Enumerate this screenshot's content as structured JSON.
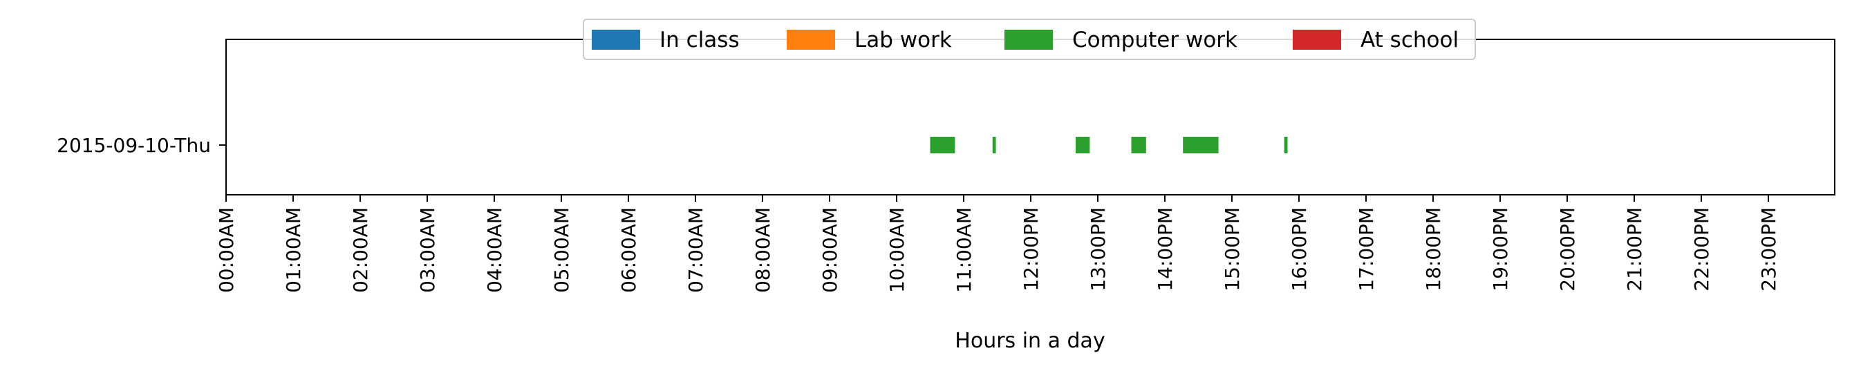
{
  "chart_data": {
    "type": "bar",
    "orientation": "horizontal-timeline",
    "xlabel": "Hours in a day",
    "xlim_hours": [
      0,
      24
    ],
    "xticks": [
      "00:00AM",
      "01:00AM",
      "02:00AM",
      "03:00AM",
      "04:00AM",
      "05:00AM",
      "06:00AM",
      "07:00AM",
      "08:00AM",
      "09:00AM",
      "10:00AM",
      "11:00AM",
      "12:00PM",
      "13:00PM",
      "14:00PM",
      "15:00PM",
      "16:00PM",
      "17:00PM",
      "18:00PM",
      "19:00PM",
      "20:00PM",
      "21:00PM",
      "22:00PM",
      "23:00PM"
    ],
    "categories": [
      "2015-09-10-Thu"
    ],
    "legend_position": "upper-center",
    "grid": false,
    "legend": [
      {
        "name": "In class",
        "color": "#1f77b4"
      },
      {
        "name": "Lab work",
        "color": "#ff7f0e"
      },
      {
        "name": "Computer work",
        "color": "#2ca02c"
      },
      {
        "name": "At school",
        "color": "#d62728"
      }
    ],
    "series": [
      {
        "name": "In class",
        "segments": []
      },
      {
        "name": "Lab work",
        "segments": []
      },
      {
        "name": "Computer work",
        "segments": [
          {
            "day": "2015-09-10-Thu",
            "start": 10.5,
            "end": 10.87
          },
          {
            "day": "2015-09-10-Thu",
            "start": 11.43,
            "end": 11.48
          },
          {
            "day": "2015-09-10-Thu",
            "start": 12.67,
            "end": 12.88
          },
          {
            "day": "2015-09-10-Thu",
            "start": 13.5,
            "end": 13.72
          },
          {
            "day": "2015-09-10-Thu",
            "start": 14.27,
            "end": 14.8
          },
          {
            "day": "2015-09-10-Thu",
            "start": 15.78,
            "end": 15.83
          }
        ]
      },
      {
        "name": "At school",
        "segments": []
      }
    ]
  }
}
